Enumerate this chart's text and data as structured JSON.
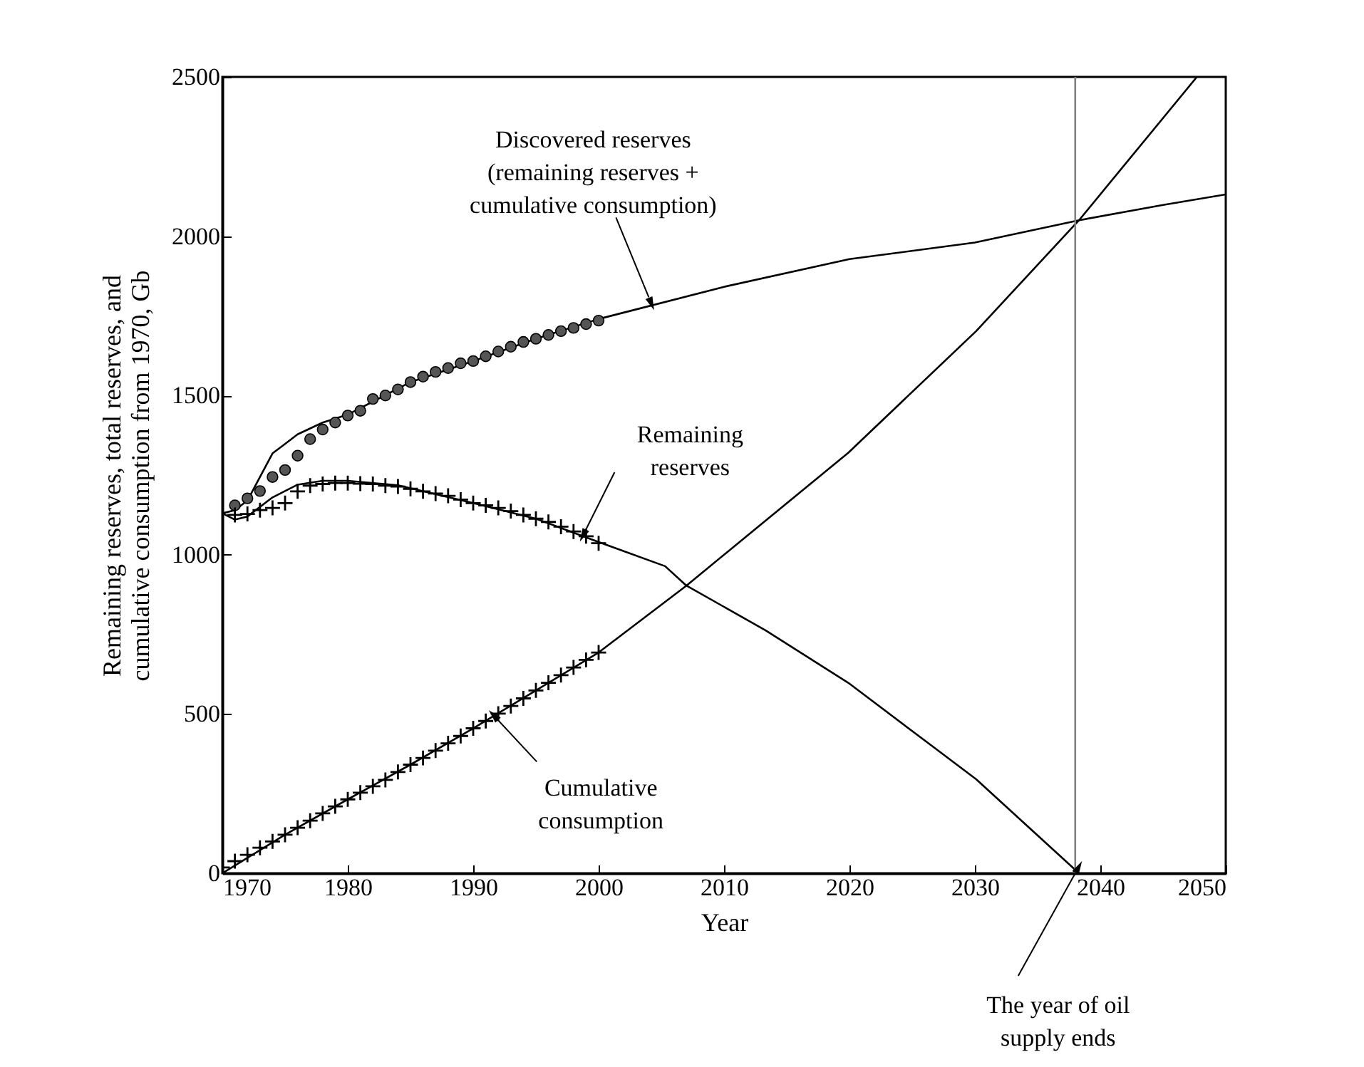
{
  "chart_data": {
    "type": "line",
    "xlabel": "Year",
    "ylabel": "Remaining reserves, total reserves, and\ncumulative consumption from 1970, Gb",
    "xlim": [
      1970,
      2050
    ],
    "ylim": [
      0,
      2500
    ],
    "xticks": [
      1970,
      1980,
      1990,
      2000,
      2010,
      2020,
      2030,
      2040,
      2050
    ],
    "yticks": [
      0,
      500,
      1000,
      1500,
      2000,
      2500
    ],
    "grid": false,
    "series": [
      {
        "color": "#000000",
        "x": [
          1970,
          1971,
          1972,
          1973,
          1974,
          1975,
          1976,
          1978,
          1980,
          1985,
          1990,
          1995,
          2000,
          2010,
          2020,
          2030,
          2038.3,
          2045,
          2050
        ],
        "values": [
          1130,
          1140,
          1170,
          1244,
          1318,
          1348,
          1378,
          1415,
          1440,
          1542,
          1608,
          1678,
          1740,
          1841,
          1928,
          1980,
          2050,
          2098,
          2131
        ]
      },
      {
        "color": "#000000",
        "x": [
          1970,
          1971,
          1972,
          1974,
          1976,
          1978,
          1980,
          1984,
          1990,
          1995,
          2000,
          2005.3,
          2007,
          2013.3,
          2019.9,
          2026.6,
          2030.1,
          2038.3
        ],
        "values": [
          1130,
          1110,
          1120,
          1180,
          1220,
          1232,
          1232,
          1218,
          1162,
          1113,
          1040,
          964,
          903,
          763,
          598,
          399,
          295,
          0
        ]
      },
      {
        "color": "#000000",
        "x": [
          1970,
          1975,
          1980,
          1985,
          1990,
          1995,
          2000,
          2007,
          2019.9,
          2030.1,
          2038.3,
          2047.7
        ],
        "values": [
          0,
          121,
          232,
          341,
          455,
          574,
          693,
          903,
          1320,
          1702,
          2050,
          2500
        ]
      },
      {
        "type": "scatter",
        "marker": "circle",
        "color": "#555555",
        "x": [
          1971,
          1972,
          1973,
          1974,
          1975,
          1976,
          1977,
          1978,
          1979,
          1980,
          1981,
          1982,
          1983,
          1984,
          1985,
          1986,
          1987,
          1988,
          1989,
          1990,
          1991,
          1992,
          1993,
          1994,
          1995,
          1996,
          1997,
          1998,
          1999,
          2000
        ],
        "values": [
          1155,
          1177,
          1200,
          1244,
          1266,
          1311,
          1363,
          1393,
          1415,
          1437,
          1452,
          1489,
          1500,
          1519,
          1542,
          1559,
          1574,
          1586,
          1601,
          1608,
          1623,
          1638,
          1653,
          1668,
          1678,
          1690,
          1702,
          1712,
          1724,
          1735
        ]
      },
      {
        "type": "scatter",
        "marker": "cross",
        "color": "#000000",
        "x": [
          1971,
          1972,
          1973,
          1974,
          1975,
          1976,
          1977,
          1978,
          1979,
          1980,
          1981,
          1982,
          1983,
          1984,
          1985,
          1986,
          1987,
          1988,
          1989,
          1990,
          1991,
          1992,
          1993,
          1994,
          1995,
          1996,
          1997,
          1998,
          1999,
          2000
        ],
        "values": [
          1125,
          1128,
          1140,
          1147,
          1162,
          1199,
          1217,
          1222,
          1225,
          1225,
          1223,
          1222,
          1217,
          1214,
          1207,
          1199,
          1192,
          1185,
          1173,
          1162,
          1155,
          1147,
          1137,
          1125,
          1113,
          1103,
          1088,
          1073,
          1058,
          1036
        ]
      },
      {
        "type": "scatter",
        "marker": "cross",
        "color": "#000000",
        "x": [
          1970,
          1971,
          1972,
          1973,
          1974,
          1975,
          1976,
          1977,
          1978,
          1979,
          1980,
          1981,
          1982,
          1983,
          1984,
          1985,
          1986,
          1987,
          1988,
          1989,
          1990,
          1991,
          1992,
          1993,
          1994,
          1995,
          1996,
          1997,
          1998,
          1999,
          2000
        ],
        "values": [
          18,
          38,
          58,
          80,
          100,
          121,
          143,
          165,
          188,
          210,
          232,
          253,
          273,
          293,
          318,
          341,
          362,
          385,
          408,
          431,
          455,
          478,
          501,
          525,
          549,
          574,
          598,
          622,
          646,
          670,
          693
        ]
      }
    ],
    "ref_lines": [
      {
        "axis": "x",
        "value": 2038,
        "color": "#808080"
      }
    ],
    "annotations": [
      {
        "text": "Discovered reserves\n(remaining reserves +\ncumulative consumption)",
        "x": 2004,
        "y": 1808
      },
      {
        "text": "Remaining\nreserves",
        "x": 1999,
        "y": 1080
      },
      {
        "text": "Cumulative\nconsumption",
        "x": 1992,
        "y": 480
      },
      {
        "text": "The year of oil\nsupply ends",
        "x": 2038,
        "y": 0
      }
    ]
  }
}
